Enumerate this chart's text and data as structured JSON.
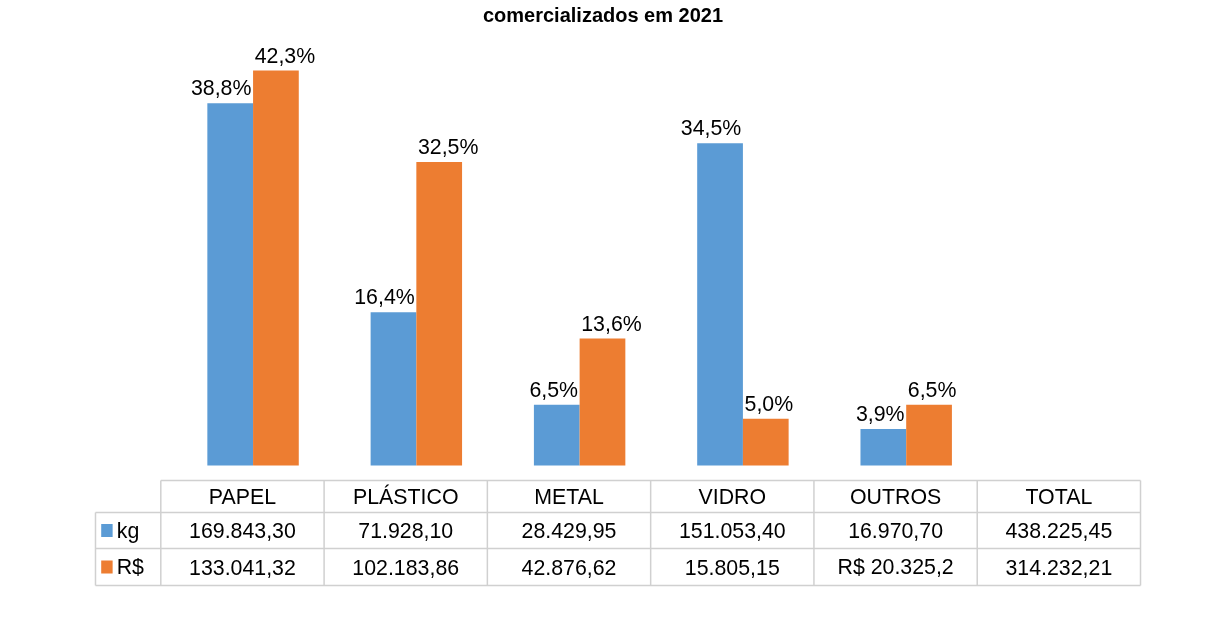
{
  "chart_data": {
    "type": "bar",
    "title": "comercializados em 2021",
    "categories": [
      "PAPEL",
      "PLÁSTICO",
      "METAL",
      "VIDRO",
      "OUTROS",
      "TOTAL"
    ],
    "series": [
      {
        "name": "kg",
        "color": "#5b9bd5",
        "values": [
          38.8,
          16.4,
          6.5,
          34.5,
          3.9,
          null
        ],
        "value_labels": [
          "38,8%",
          "16,4%",
          "6,5%",
          "34,5%",
          "3,9%",
          null
        ]
      },
      {
        "name": "R$",
        "color": "#ed7d31",
        "values": [
          42.3,
          32.5,
          13.6,
          5.0,
          6.5,
          null
        ],
        "value_labels": [
          "42,3%",
          "32,5%",
          "13,6%",
          "5,0%",
          "6,5%",
          null
        ]
      }
    ],
    "annotations": [
      "169.843,30",
      "71.928,10",
      "28.429,95",
      "151.053,40",
      "16.970,70",
      "438.225,45",
      "133.041,32",
      "102.183,86",
      "42.876,62",
      "15.805,15",
      "R$ 20.325,2",
      "314.232,21"
    ],
    "legend": "bottom",
    "grid": false
  }
}
